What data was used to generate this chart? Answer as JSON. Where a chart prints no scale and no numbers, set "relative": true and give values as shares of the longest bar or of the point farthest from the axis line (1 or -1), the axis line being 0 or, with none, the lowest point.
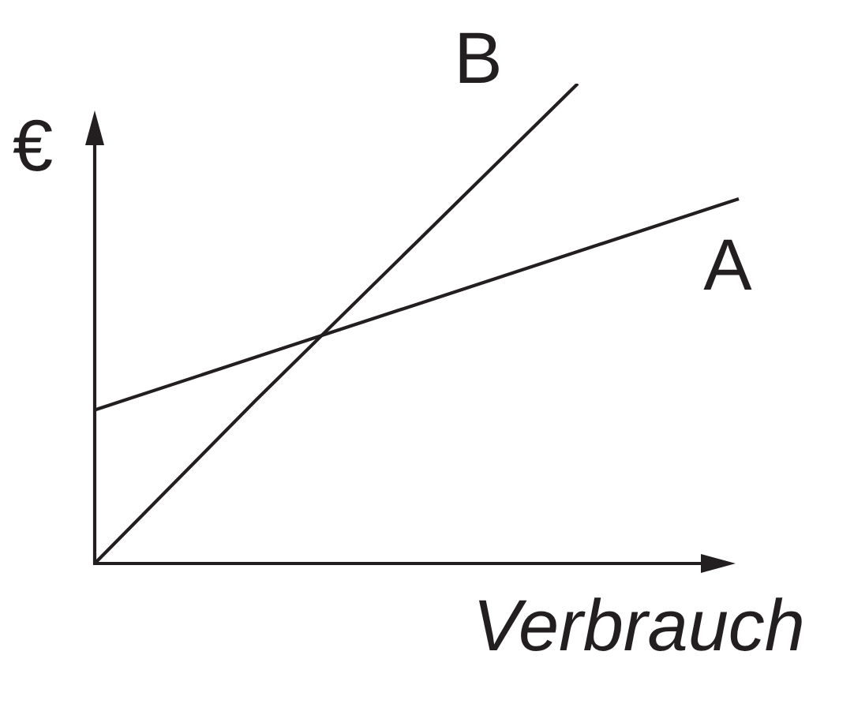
{
  "chart_data": {
    "type": "line",
    "relative": true,
    "xlabel": "Verbrauch",
    "ylabel": "€",
    "categories": [
      null,
      null,
      null,
      null,
      null
    ],
    "series": [
      {
        "name": "A",
        "color": "#231f20",
        "values": [
          0.32,
          0.43,
          0.54,
          0.65,
          0.76
        ]
      },
      {
        "name": "B",
        "color": "#231f20",
        "values": [
          0,
          0.34,
          0.67,
          1,
          null
        ]
      }
    ]
  }
}
